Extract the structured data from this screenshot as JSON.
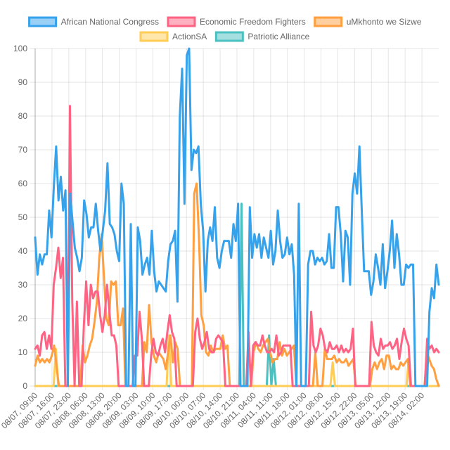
{
  "chart_data": {
    "type": "line",
    "ylim": [
      0,
      100
    ],
    "y_ticks": [
      0,
      10,
      20,
      30,
      40,
      50,
      60,
      70,
      80,
      90,
      100
    ],
    "grid": true,
    "legend_position": "top-center",
    "x_tick_labels": [
      "08/07, 09:00",
      "08/07, 16:00",
      "08/07, 23:00",
      "08/08, 06:00",
      "08/08, 13:00",
      "08/08, 20:00",
      "08/09, 03:00",
      "08/09, 10:00",
      "08/09, 17:00",
      "08/10, 00:00",
      "08/10, 07:00",
      "08/10, 14:00",
      "08/10, 21:00",
      "08/11, 04:00",
      "08/11, 11:00",
      "08/11, 18:00",
      "08/12, 01:00",
      "08/12, 08:00",
      "08/12, 15:00",
      "08/12, 22:00",
      "08/13, 05:00",
      "08/13, 12:00",
      "08/13, 19:00",
      "08/14, 02:00"
    ],
    "series": [
      {
        "name": "African National Congress",
        "color": "#36a2eb",
        "fill": "rgba(54,162,235,0.5)",
        "values": [
          44,
          33,
          39,
          36,
          39,
          39,
          52,
          44,
          59,
          71,
          55,
          62,
          52,
          58,
          0,
          57,
          49,
          41,
          38,
          34,
          38,
          55,
          51,
          44,
          47,
          47,
          54,
          46,
          40,
          46,
          52,
          66,
          48,
          47,
          45,
          40,
          37,
          60,
          54,
          0,
          0,
          48,
          0,
          0,
          47,
          43,
          33,
          36,
          38,
          33,
          46,
          34,
          28,
          31,
          30,
          29,
          28,
          37,
          42,
          43,
          46,
          25,
          80,
          94,
          54,
          98,
          100,
          64,
          70,
          69,
          71,
          54,
          46,
          28,
          43,
          47,
          43,
          53,
          38,
          35,
          40,
          43,
          43,
          43,
          38,
          48,
          43,
          54,
          0,
          0,
          0,
          0,
          53,
          38,
          45,
          41,
          45,
          38,
          44,
          41,
          38,
          46,
          36,
          40,
          52,
          43,
          38,
          39,
          44,
          39,
          42,
          33,
          0,
          54,
          0,
          0,
          0,
          36,
          40,
          40,
          36,
          38,
          37,
          38,
          36,
          37,
          45,
          35,
          35,
          53,
          53,
          45,
          31,
          46,
          44,
          30,
          57,
          63,
          57,
          71,
          52,
          34,
          34,
          34,
          27,
          31,
          39,
          35,
          30,
          42,
          29,
          34,
          40,
          49,
          35,
          45,
          39,
          30,
          30,
          36,
          35,
          36,
          36,
          0,
          0,
          0,
          0,
          0,
          0,
          22,
          29,
          26,
          36,
          30
        ],
        "values_visible_range_note": ""
      },
      {
        "name": "Economic Freedom Fighters",
        "color": "#ff6384",
        "fill": "rgba(255,99,132,0.5)",
        "values": [
          11,
          12,
          9,
          15,
          16,
          11,
          15,
          11,
          30,
          35,
          41,
          32,
          38,
          0,
          0,
          83,
          25,
          0,
          25,
          0,
          0,
          18,
          31,
          18,
          30,
          26,
          28,
          28,
          21,
          16,
          21,
          30,
          22,
          15,
          15,
          12,
          0,
          0,
          0,
          0,
          0,
          0,
          0,
          9,
          9,
          22,
          14,
          0,
          0,
          0,
          9,
          14,
          10,
          9,
          12,
          14,
          10,
          16,
          21,
          16,
          14,
          0,
          0,
          0,
          0,
          0,
          0,
          0,
          0,
          16,
          20,
          14,
          11,
          13,
          16,
          11,
          10,
          10,
          14,
          15,
          14,
          13,
          0,
          0,
          0,
          0,
          0,
          0,
          0,
          0,
          0,
          0,
          16,
          0,
          12,
          13,
          12,
          12,
          15,
          12,
          10,
          10,
          11,
          10,
          15,
          9,
          10,
          12,
          12,
          12,
          12,
          0,
          0,
          0,
          0,
          0,
          0,
          0,
          0,
          22,
          12,
          10,
          12,
          17,
          15,
          11,
          10,
          13,
          11,
          11,
          12,
          10,
          12,
          10,
          11,
          10,
          11,
          17,
          0,
          0,
          0,
          0,
          0,
          0,
          0,
          19,
          12,
          10,
          9,
          14,
          11,
          12,
          12,
          13,
          11,
          12,
          14,
          8,
          13,
          17,
          14,
          12,
          0,
          0,
          0,
          0,
          0,
          0,
          0,
          14,
          11,
          12,
          10,
          11,
          10
        ]
      },
      {
        "name": "uMkhonto we Sizwe",
        "color": "#ff9f40",
        "fill": "rgba(255,159,64,0.5)",
        "values": [
          6,
          9,
          7,
          8,
          7,
          8,
          7,
          9,
          12,
          6,
          0,
          0,
          0,
          0,
          0,
          0,
          0,
          0,
          0,
          0,
          12,
          7,
          9,
          12,
          14,
          19,
          25,
          38,
          45,
          32,
          20,
          18,
          31,
          30,
          31,
          18,
          18,
          23,
          0,
          0,
          0,
          0,
          0,
          0,
          0,
          0,
          13,
          10,
          24,
          13,
          9,
          7,
          10,
          9,
          8,
          5,
          10,
          15,
          7,
          13,
          11,
          0,
          0,
          0,
          0,
          0,
          0,
          57,
          60,
          44,
          21,
          18,
          10,
          9,
          12,
          10,
          11,
          11,
          11,
          15,
          11,
          12,
          0,
          0,
          0,
          0,
          0,
          0,
          0,
          0,
          0,
          0,
          10,
          13,
          11,
          10,
          12,
          13,
          14,
          10,
          7,
          8,
          8,
          13,
          9,
          11,
          9,
          10,
          11,
          12,
          0,
          0,
          0,
          0,
          0,
          0,
          0,
          0,
          10,
          0,
          0,
          0,
          11,
          8,
          8,
          8,
          9,
          7,
          8,
          7,
          7,
          8,
          6,
          7,
          8,
          0,
          0,
          0,
          0,
          0,
          0,
          0,
          5,
          7,
          5,
          7,
          8,
          5,
          9,
          9,
          5,
          6,
          5,
          5,
          7,
          6,
          7,
          8,
          0,
          0,
          0,
          0,
          0,
          0,
          0,
          10,
          8,
          6,
          5,
          2,
          0
        ]
      },
      {
        "name": "ActionSA",
        "color": "#ffcd56",
        "fill": "rgba(255,205,86,0.5)",
        "values": [
          0,
          0,
          0,
          0,
          0,
          0,
          0,
          0,
          0,
          11,
          0,
          0,
          0,
          0,
          0,
          0,
          0,
          0,
          0,
          0,
          0,
          0,
          0,
          0,
          0,
          0,
          0,
          0,
          0,
          0,
          0,
          0,
          0,
          0,
          0,
          0,
          0,
          0,
          0,
          0,
          0,
          0,
          0,
          0,
          0,
          0,
          0,
          0,
          0,
          0,
          0,
          0,
          0,
          0,
          0,
          0,
          0,
          0,
          15,
          0,
          0,
          0,
          0,
          0,
          0,
          0,
          0,
          0,
          0,
          0,
          0,
          0,
          0,
          0,
          0,
          0,
          0,
          0,
          0,
          0,
          0,
          0,
          0,
          0,
          0,
          0,
          0,
          0,
          0,
          0,
          0,
          0,
          0,
          0,
          0,
          0,
          0,
          0,
          0,
          0,
          0,
          0,
          0,
          0,
          0,
          0,
          0,
          0,
          0,
          0,
          0,
          0,
          0,
          0,
          0,
          0,
          0,
          0,
          0,
          0,
          0,
          0,
          0,
          0,
          0,
          0,
          0,
          0,
          0,
          7,
          0,
          0,
          0,
          0,
          0,
          0,
          0,
          0,
          0,
          0,
          0,
          0,
          0,
          0,
          0,
          0,
          0,
          0,
          0,
          0,
          0,
          0,
          0,
          0,
          0,
          0,
          0,
          0,
          0,
          0,
          0,
          0,
          8,
          0,
          0,
          0,
          0,
          0,
          0,
          0,
          0,
          0,
          0,
          0,
          0,
          0
        ]
      },
      {
        "name": "Patriotic Alliance",
        "color": "#4bc0c0",
        "fill": "rgba(75,192,192,0.5)",
        "values": [
          0,
          0,
          0,
          0,
          0,
          0,
          0,
          0,
          0,
          0,
          0,
          0,
          0,
          0,
          0,
          0,
          0,
          0,
          0,
          0,
          0,
          0,
          0,
          0,
          0,
          0,
          0,
          0,
          0,
          0,
          0,
          0,
          0,
          0,
          0,
          0,
          0,
          0,
          0,
          0,
          0,
          0,
          0,
          0,
          0,
          0,
          0,
          0,
          0,
          0,
          0,
          0,
          0,
          0,
          0,
          0,
          0,
          0,
          0,
          0,
          0,
          0,
          0,
          0,
          0,
          0,
          0,
          0,
          0,
          0,
          0,
          0,
          0,
          0,
          0,
          0,
          0,
          0,
          0,
          0,
          0,
          0,
          0,
          0,
          0,
          0,
          0,
          0,
          0,
          0,
          54,
          0,
          0,
          0,
          0,
          0,
          0,
          0,
          0,
          0,
          0,
          0,
          15,
          0,
          8,
          0,
          0,
          0,
          0,
          0,
          0,
          0,
          0,
          0,
          0,
          0,
          0,
          0,
          0,
          0,
          0,
          0,
          0,
          0,
          0,
          0,
          0,
          0,
          0,
          0,
          0,
          0,
          0,
          0,
          0,
          0,
          0,
          0,
          0,
          0,
          0,
          0,
          0,
          0,
          0,
          0,
          0,
          0,
          0,
          0,
          0,
          0,
          0,
          0,
          0,
          0,
          0,
          0,
          0,
          0,
          0,
          0,
          0,
          0,
          0,
          0,
          0,
          0,
          0,
          0,
          0,
          0,
          0,
          0,
          0,
          0,
          0
        ]
      }
    ]
  }
}
